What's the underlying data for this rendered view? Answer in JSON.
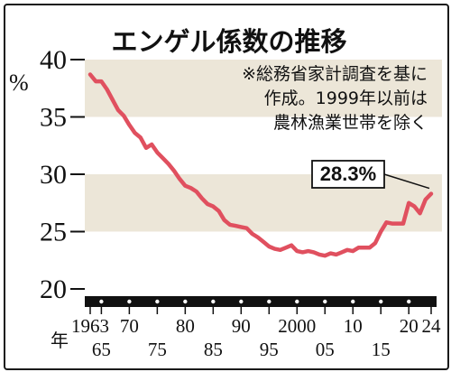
{
  "chart_data": {
    "type": "line",
    "title": "エンゲル係数の推移",
    "note_lines": [
      "※総務省家計調査を基に",
      "作成。1999年以前は",
      "農林漁業世帯を除く"
    ],
    "ylabel": "%",
    "ylim": [
      20,
      40
    ],
    "yticks": [
      20,
      25,
      30,
      35,
      40
    ],
    "xlim": [
      1963,
      2024
    ],
    "x_unit": "年",
    "xticks_top": [
      {
        "value": 1963,
        "label": "1963"
      },
      {
        "value": 1970,
        "label": "70"
      },
      {
        "value": 1980,
        "label": "80"
      },
      {
        "value": 1990,
        "label": "90"
      },
      {
        "value": 2000,
        "label": "2000"
      },
      {
        "value": 2010,
        "label": "10"
      },
      {
        "value": 2020,
        "label": "20"
      },
      {
        "value": 2024,
        "label": "24"
      }
    ],
    "xticks_bottom": [
      {
        "value": 1965,
        "label": "65"
      },
      {
        "value": 1975,
        "label": "75"
      },
      {
        "value": 1985,
        "label": "85"
      },
      {
        "value": 1995,
        "label": "95"
      },
      {
        "value": 2005,
        "label": "05"
      },
      {
        "value": 2015,
        "label": "15"
      }
    ],
    "shaded_bands": [
      [
        25,
        30
      ],
      [
        35,
        40
      ]
    ],
    "line_color": "#e0505f",
    "band_color": "#ece6d8",
    "grid": false,
    "callout": {
      "x": 2024,
      "y": 28.3,
      "label": "28.3%"
    },
    "series": [
      {
        "x": [
          1963,
          1964,
          1965,
          1966,
          1967,
          1968,
          1969,
          1970,
          1971,
          1972,
          1973,
          1974,
          1975,
          1976,
          1977,
          1978,
          1979,
          1980,
          1981,
          1982,
          1983,
          1984,
          1985,
          1986,
          1987,
          1988,
          1989,
          1990,
          1991,
          1992,
          1993,
          1994,
          1995,
          1996,
          1997,
          1998,
          1999,
          2000,
          2001,
          2002,
          2003,
          2004,
          2005,
          2006,
          2007,
          2008,
          2009,
          2010,
          2011,
          2012,
          2013,
          2014,
          2015,
          2016,
          2017,
          2018,
          2019,
          2020,
          2021,
          2022,
          2023,
          2024
        ],
        "y": [
          38.7,
          38.1,
          38.1,
          37.4,
          36.5,
          35.6,
          35.1,
          34.3,
          33.6,
          33.2,
          32.3,
          32.6,
          31.9,
          31.4,
          30.9,
          30.3,
          29.6,
          29.0,
          28.8,
          28.5,
          27.9,
          27.4,
          27.2,
          26.8,
          26.0,
          25.6,
          25.5,
          25.4,
          25.3,
          24.8,
          24.5,
          24.1,
          23.7,
          23.5,
          23.4,
          23.6,
          23.8,
          23.3,
          23.2,
          23.3,
          23.2,
          23.0,
          22.9,
          23.1,
          23.0,
          23.2,
          23.4,
          23.3,
          23.6,
          23.6,
          23.6,
          24.0,
          25.0,
          25.8,
          25.7,
          25.7,
          25.7,
          27.5,
          27.2,
          26.6,
          27.8,
          28.3
        ]
      }
    ]
  }
}
